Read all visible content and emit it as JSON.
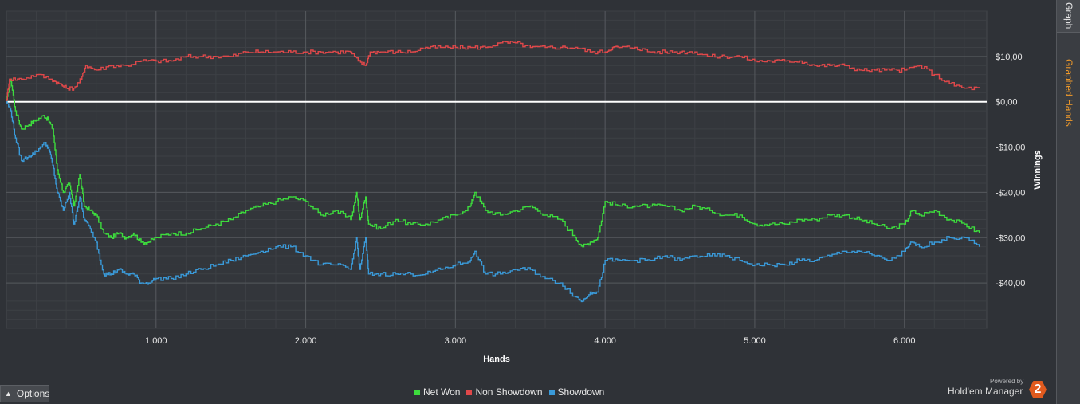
{
  "tabs": {
    "graph": "Graph",
    "graphed_hands": "Graphed Hands"
  },
  "options": {
    "label": "Options"
  },
  "brand": {
    "powered_by": "Powered by",
    "name": "Hold'em Manager",
    "logo_digit": "2"
  },
  "colors": {
    "background": "#2f3237",
    "net_won": "#3ddc3d",
    "non_showdown": "#e0484a",
    "showdown": "#3a9ad9",
    "zero_line": "#ffffff",
    "active_tab": "#f29b2a"
  },
  "chart_data": {
    "type": "line",
    "title": "",
    "xlabel": "Hands",
    "ylabel": "Winnings",
    "x_range": [
      0,
      6550
    ],
    "ylim": [
      -50,
      20
    ],
    "x_ticks": [
      1000,
      2000,
      3000,
      4000,
      5000,
      6000
    ],
    "x_tick_labels": [
      "1.000",
      "2.000",
      "3.000",
      "4.000",
      "5.000",
      "6.000"
    ],
    "y_ticks": [
      10,
      0,
      -10,
      -20,
      -30,
      -40
    ],
    "y_tick_labels": [
      "$10,00",
      "$0,00",
      "-$10,00",
      "-$20,00",
      "-$30,00",
      "-$40,00"
    ],
    "grid": true,
    "zero_line": true,
    "legend_position": "bottom-center",
    "series": [
      {
        "name": "Net Won",
        "color": "#3ddc3d",
        "points": [
          [
            0,
            0
          ],
          [
            30,
            5
          ],
          [
            60,
            -2
          ],
          [
            100,
            -6
          ],
          [
            150,
            -5
          ],
          [
            200,
            -4
          ],
          [
            250,
            -3
          ],
          [
            280,
            -4
          ],
          [
            310,
            -6
          ],
          [
            340,
            -15
          ],
          [
            380,
            -20
          ],
          [
            420,
            -18
          ],
          [
            450,
            -23
          ],
          [
            490,
            -16
          ],
          [
            520,
            -23
          ],
          [
            560,
            -24
          ],
          [
            600,
            -25
          ],
          [
            650,
            -29
          ],
          [
            700,
            -30
          ],
          [
            750,
            -29
          ],
          [
            800,
            -30
          ],
          [
            850,
            -29
          ],
          [
            900,
            -31
          ],
          [
            950,
            -31
          ],
          [
            1000,
            -30
          ],
          [
            1100,
            -29
          ],
          [
            1200,
            -29
          ],
          [
            1300,
            -28
          ],
          [
            1400,
            -27
          ],
          [
            1500,
            -26
          ],
          [
            1600,
            -24
          ],
          [
            1700,
            -23
          ],
          [
            1800,
            -22
          ],
          [
            1900,
            -21
          ],
          [
            2000,
            -22
          ],
          [
            2100,
            -25
          ],
          [
            2200,
            -24
          ],
          [
            2300,
            -26
          ],
          [
            2340,
            -20
          ],
          [
            2360,
            -26
          ],
          [
            2400,
            -21
          ],
          [
            2420,
            -27
          ],
          [
            2500,
            -28
          ],
          [
            2600,
            -26
          ],
          [
            2700,
            -27
          ],
          [
            2800,
            -27
          ],
          [
            2900,
            -26
          ],
          [
            3000,
            -25
          ],
          [
            3100,
            -23
          ],
          [
            3130,
            -20
          ],
          [
            3200,
            -24
          ],
          [
            3300,
            -25
          ],
          [
            3400,
            -24
          ],
          [
            3500,
            -23
          ],
          [
            3600,
            -25
          ],
          [
            3700,
            -26
          ],
          [
            3800,
            -30
          ],
          [
            3850,
            -32
          ],
          [
            3900,
            -31
          ],
          [
            3950,
            -30
          ],
          [
            4000,
            -22
          ],
          [
            4100,
            -23
          ],
          [
            4200,
            -23
          ],
          [
            4300,
            -23
          ],
          [
            4400,
            -23
          ],
          [
            4500,
            -24
          ],
          [
            4600,
            -23
          ],
          [
            4700,
            -24
          ],
          [
            4800,
            -25
          ],
          [
            4900,
            -25
          ],
          [
            5000,
            -27
          ],
          [
            5100,
            -27
          ],
          [
            5200,
            -27
          ],
          [
            5300,
            -26
          ],
          [
            5400,
            -26
          ],
          [
            5500,
            -25
          ],
          [
            5600,
            -25
          ],
          [
            5700,
            -26
          ],
          [
            5800,
            -27
          ],
          [
            5900,
            -28
          ],
          [
            6000,
            -27
          ],
          [
            6050,
            -24
          ],
          [
            6100,
            -25
          ],
          [
            6200,
            -24
          ],
          [
            6300,
            -26
          ],
          [
            6400,
            -27
          ],
          [
            6500,
            -29
          ]
        ]
      },
      {
        "name": "Non Showdown",
        "color": "#e0484a",
        "points": [
          [
            0,
            0
          ],
          [
            20,
            5
          ],
          [
            100,
            5
          ],
          [
            200,
            6
          ],
          [
            300,
            5
          ],
          [
            350,
            4
          ],
          [
            400,
            3
          ],
          [
            450,
            3
          ],
          [
            500,
            5
          ],
          [
            530,
            8
          ],
          [
            600,
            7
          ],
          [
            700,
            8
          ],
          [
            800,
            8
          ],
          [
            900,
            9
          ],
          [
            1000,
            9
          ],
          [
            1100,
            9
          ],
          [
            1200,
            10
          ],
          [
            1300,
            10
          ],
          [
            1400,
            10
          ],
          [
            1500,
            10
          ],
          [
            1600,
            11
          ],
          [
            1700,
            11
          ],
          [
            1800,
            11
          ],
          [
            1900,
            11
          ],
          [
            2000,
            11
          ],
          [
            2100,
            11
          ],
          [
            2200,
            11
          ],
          [
            2300,
            11
          ],
          [
            2350,
            9
          ],
          [
            2400,
            8
          ],
          [
            2430,
            11
          ],
          [
            2500,
            11
          ],
          [
            2600,
            11
          ],
          [
            2700,
            11
          ],
          [
            2800,
            12
          ],
          [
            2900,
            12
          ],
          [
            3000,
            12
          ],
          [
            3100,
            12
          ],
          [
            3200,
            12
          ],
          [
            3300,
            13
          ],
          [
            3400,
            13
          ],
          [
            3500,
            12
          ],
          [
            3600,
            12
          ],
          [
            3700,
            12
          ],
          [
            3800,
            12
          ],
          [
            3900,
            11
          ],
          [
            4000,
            11
          ],
          [
            4050,
            12
          ],
          [
            4100,
            12
          ],
          [
            4200,
            12
          ],
          [
            4300,
            11
          ],
          [
            4400,
            11
          ],
          [
            4500,
            11
          ],
          [
            4600,
            11
          ],
          [
            4700,
            10
          ],
          [
            4800,
            10
          ],
          [
            4900,
            10
          ],
          [
            5000,
            9
          ],
          [
            5100,
            9
          ],
          [
            5200,
            9
          ],
          [
            5300,
            9
          ],
          [
            5400,
            8
          ],
          [
            5500,
            8
          ],
          [
            5600,
            8
          ],
          [
            5700,
            7
          ],
          [
            5800,
            7
          ],
          [
            5900,
            7
          ],
          [
            6000,
            7
          ],
          [
            6100,
            8
          ],
          [
            6200,
            6
          ],
          [
            6300,
            4
          ],
          [
            6400,
            3
          ],
          [
            6500,
            3
          ]
        ]
      },
      {
        "name": "Showdown",
        "color": "#3a9ad9",
        "points": [
          [
            0,
            0
          ],
          [
            30,
            -2
          ],
          [
            60,
            -8
          ],
          [
            100,
            -13
          ],
          [
            150,
            -12
          ],
          [
            200,
            -11
          ],
          [
            250,
            -9
          ],
          [
            280,
            -10
          ],
          [
            310,
            -14
          ],
          [
            340,
            -20
          ],
          [
            380,
            -24
          ],
          [
            420,
            -20
          ],
          [
            450,
            -27
          ],
          [
            490,
            -21
          ],
          [
            520,
            -26
          ],
          [
            560,
            -28
          ],
          [
            600,
            -31
          ],
          [
            650,
            -38
          ],
          [
            700,
            -38
          ],
          [
            750,
            -37
          ],
          [
            800,
            -38
          ],
          [
            850,
            -38
          ],
          [
            900,
            -40
          ],
          [
            950,
            -40
          ],
          [
            1000,
            -39
          ],
          [
            1100,
            -39
          ],
          [
            1200,
            -38
          ],
          [
            1300,
            -37
          ],
          [
            1400,
            -36
          ],
          [
            1500,
            -35
          ],
          [
            1600,
            -34
          ],
          [
            1700,
            -33
          ],
          [
            1800,
            -32
          ],
          [
            1900,
            -32
          ],
          [
            2000,
            -34
          ],
          [
            2100,
            -36
          ],
          [
            2200,
            -36
          ],
          [
            2300,
            -37
          ],
          [
            2340,
            -30
          ],
          [
            2360,
            -37
          ],
          [
            2400,
            -30
          ],
          [
            2420,
            -38
          ],
          [
            2500,
            -38
          ],
          [
            2600,
            -38
          ],
          [
            2700,
            -38
          ],
          [
            2800,
            -38
          ],
          [
            2900,
            -37
          ],
          [
            3000,
            -36
          ],
          [
            3100,
            -35
          ],
          [
            3130,
            -33
          ],
          [
            3200,
            -38
          ],
          [
            3300,
            -38
          ],
          [
            3400,
            -37
          ],
          [
            3500,
            -37
          ],
          [
            3600,
            -39
          ],
          [
            3700,
            -40
          ],
          [
            3800,
            -43
          ],
          [
            3850,
            -44
          ],
          [
            3900,
            -42
          ],
          [
            3950,
            -42
          ],
          [
            4000,
            -35
          ],
          [
            4100,
            -35
          ],
          [
            4200,
            -35
          ],
          [
            4300,
            -35
          ],
          [
            4400,
            -34
          ],
          [
            4500,
            -35
          ],
          [
            4600,
            -34
          ],
          [
            4700,
            -34
          ],
          [
            4800,
            -34
          ],
          [
            4900,
            -35
          ],
          [
            5000,
            -36
          ],
          [
            5100,
            -36
          ],
          [
            5200,
            -36
          ],
          [
            5300,
            -35
          ],
          [
            5400,
            -35
          ],
          [
            5500,
            -34
          ],
          [
            5600,
            -33
          ],
          [
            5700,
            -33
          ],
          [
            5800,
            -34
          ],
          [
            5900,
            -35
          ],
          [
            6000,
            -33
          ],
          [
            6050,
            -31
          ],
          [
            6100,
            -32
          ],
          [
            6200,
            -31
          ],
          [
            6300,
            -30
          ],
          [
            6400,
            -30
          ],
          [
            6500,
            -32
          ]
        ]
      }
    ]
  }
}
